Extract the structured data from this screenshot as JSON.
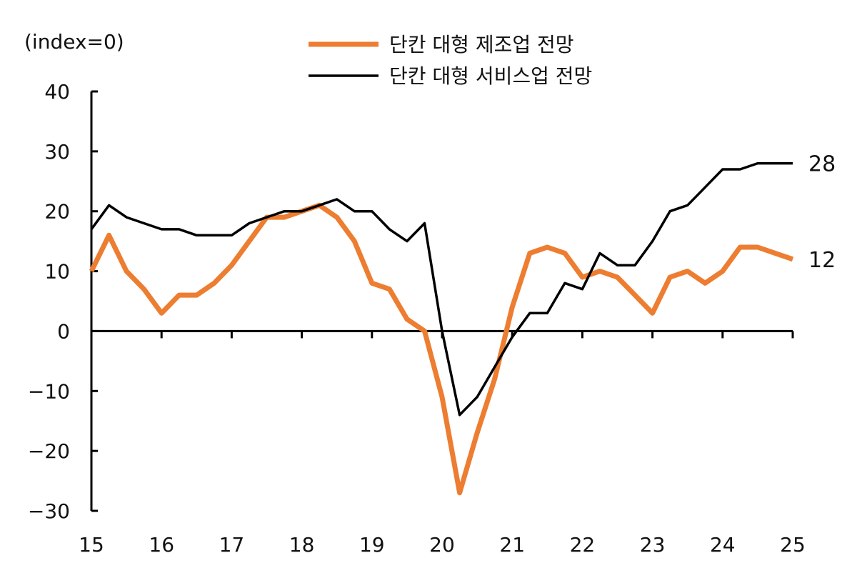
{
  "chart_data": {
    "type": "line",
    "unit_label": "(index=0)",
    "ylim": [
      -30,
      40
    ],
    "yticks": [
      40,
      30,
      20,
      10,
      0,
      -10,
      -20,
      -30
    ],
    "ytick_labels": [
      "40",
      "30",
      "20",
      "10",
      "0",
      "−10",
      "−20",
      "−30"
    ],
    "xlim": [
      2015,
      2025
    ],
    "xticks": [
      2015,
      2016,
      2017,
      2018,
      2019,
      2020,
      2021,
      2022,
      2023,
      2024,
      2025
    ],
    "xtick_labels": [
      "15",
      "16",
      "17",
      "18",
      "19",
      "20",
      "21",
      "22",
      "23",
      "24",
      "25"
    ],
    "grid": false,
    "legend_position": "top",
    "series": [
      {
        "name": "단칸 대형 제조업 전망",
        "color": "#ED7D31",
        "x": [
          2015.0,
          2015.25,
          2015.5,
          2015.75,
          2016.0,
          2016.25,
          2016.5,
          2016.75,
          2017.0,
          2017.25,
          2017.5,
          2017.75,
          2018.0,
          2018.25,
          2018.5,
          2018.75,
          2019.0,
          2019.25,
          2019.5,
          2019.75,
          2020.0,
          2020.25,
          2020.5,
          2020.75,
          2021.0,
          2021.25,
          2021.5,
          2021.75,
          2022.0,
          2022.25,
          2022.5,
          2022.75,
          2023.0,
          2023.25,
          2023.5,
          2023.75,
          2024.0,
          2024.25,
          2024.5,
          2024.75,
          2025.0
        ],
        "values": [
          10,
          16,
          10,
          7,
          3,
          6,
          6,
          8,
          11,
          15,
          19,
          19,
          20,
          21,
          19,
          15,
          8,
          7,
          2,
          0,
          -11,
          -27,
          -17,
          -8,
          4,
          13,
          14,
          13,
          9,
          10,
          9,
          6,
          3,
          9,
          10,
          8,
          10,
          14,
          14,
          13,
          12
        ],
        "end_label": "12"
      },
      {
        "name": "단칸 대형 서비스업 전망",
        "color": "#000000",
        "x": [
          2015.0,
          2015.25,
          2015.5,
          2015.75,
          2016.0,
          2016.25,
          2016.5,
          2016.75,
          2017.0,
          2017.25,
          2017.5,
          2017.75,
          2018.0,
          2018.25,
          2018.5,
          2018.75,
          2019.0,
          2019.25,
          2019.5,
          2019.75,
          2020.0,
          2020.25,
          2020.5,
          2020.75,
          2021.0,
          2021.25,
          2021.5,
          2021.75,
          2022.0,
          2022.25,
          2022.5,
          2022.75,
          2023.0,
          2023.25,
          2023.5,
          2023.75,
          2024.0,
          2024.25,
          2024.5,
          2024.75,
          2025.0
        ],
        "values": [
          17,
          21,
          19,
          18,
          17,
          17,
          16,
          16,
          16,
          18,
          19,
          20,
          20,
          21,
          22,
          20,
          20,
          17,
          15,
          18,
          0,
          -14,
          -11,
          -6,
          -1,
          3,
          3,
          8,
          7,
          13,
          11,
          11,
          15,
          20,
          21,
          24,
          27,
          27,
          28,
          28,
          28
        ],
        "end_label": "28"
      }
    ]
  }
}
